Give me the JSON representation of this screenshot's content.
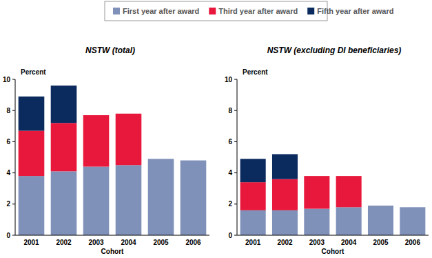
{
  "chart_data": [
    {
      "type": "bar",
      "stacked": true,
      "legend": "top",
      "title": "NSTW (total)",
      "y_label": "Percent",
      "x_label": "Cohort",
      "categories": [
        "2001",
        "2002",
        "2003",
        "2004",
        "2005",
        "2006"
      ],
      "ylim": [
        0,
        10
      ],
      "yticks": [
        0,
        2,
        4,
        6,
        8,
        10
      ],
      "series": [
        {
          "name": "First year after award",
          "color": "#8091b9",
          "values": [
            3.8,
            4.1,
            4.4,
            4.5,
            4.9,
            4.8
          ]
        },
        {
          "name": "Third year after award",
          "color": "#e8183c",
          "values": [
            2.9,
            3.1,
            3.3,
            3.3,
            null,
            null
          ]
        },
        {
          "name": "Fifth year after award",
          "color": "#0b2a5e",
          "values": [
            2.2,
            2.4,
            null,
            null,
            null,
            null
          ]
        }
      ]
    },
    {
      "type": "bar",
      "stacked": true,
      "title": "NSTW (excluding DI beneficiaries)",
      "y_label": "Percent",
      "x_label": "Cohort",
      "categories": [
        "2001",
        "2002",
        "2003",
        "2004",
        "2005",
        "2006"
      ],
      "ylim": [
        0,
        10
      ],
      "yticks": [
        0,
        2,
        4,
        6,
        8,
        10
      ],
      "series": [
        {
          "color": "#8091b9",
          "values": [
            1.6,
            1.6,
            1.7,
            1.8,
            1.9,
            1.8
          ]
        },
        {
          "color": "#e8183c",
          "values": [
            1.8,
            2.0,
            2.1,
            2.0,
            null,
            null
          ]
        },
        {
          "color": "#0b2a5e",
          "values": [
            1.5,
            1.6,
            null,
            null,
            null,
            null
          ]
        }
      ]
    }
  ]
}
